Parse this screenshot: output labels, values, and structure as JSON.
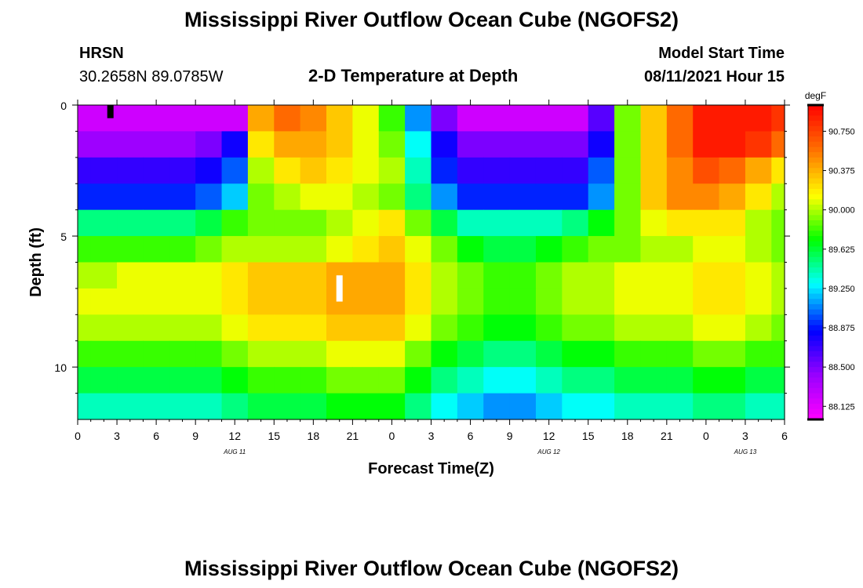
{
  "page": {
    "title_top": "Mississippi River Outflow Ocean Cube (NGOFS2)",
    "title_bottom": "Mississippi River Outflow Ocean Cube (NGOFS2)",
    "station": {
      "name": "HRSN",
      "coords": "30.2658N  89.0785W"
    },
    "plot_title": "2-D Temperature at Depth",
    "model": {
      "label": "Model Start Time",
      "value": "08/11/2021 Hour 15"
    }
  },
  "chart_data": {
    "type": "heatmap",
    "title": "2-D Temperature at Depth",
    "xlabel": "Forecast Time(Z)",
    "ylabel": "Depth (ft)",
    "x_range_hours": [
      0,
      54
    ],
    "x_tick_labels": [
      "0",
      "3",
      "6",
      "9",
      "12",
      "15",
      "18",
      "21",
      "0",
      "3",
      "6",
      "9",
      "12",
      "15",
      "18",
      "21",
      "0",
      "3",
      "6"
    ],
    "date_labels": [
      {
        "hour": 12,
        "text": "AUG 11"
      },
      {
        "hour": 36,
        "text": "AUG 12"
      },
      {
        "hour": 51,
        "text": "AUG 13"
      }
    ],
    "y_range_ft": [
      0,
      12
    ],
    "y_tick_labels": [
      "0",
      "5",
      "10"
    ],
    "colorbar": {
      "unit": "degF",
      "min": 88.0,
      "max": 91.0,
      "tick_values": [
        88.125,
        88.5,
        88.875,
        89.25,
        89.625,
        90.0,
        90.375,
        90.75
      ],
      "tick_labels": [
        "88.125",
        "88.500",
        "88.875",
        "89.250",
        "89.625",
        "90.000",
        "90.375",
        "90.750"
      ]
    },
    "markers": [
      {
        "hour": 2.5,
        "depth_from": 0.0,
        "depth_to": 0.5,
        "color": "#000000"
      },
      {
        "hour": 20,
        "depth_from": 6.5,
        "depth_to": 7.5,
        "color": "#ffffff"
      }
    ],
    "depth_rows_ft": [
      0.5,
      1.5,
      2.5,
      3.5,
      4.5,
      5.5,
      6.5,
      7.5,
      8.5,
      9.5,
      10.5,
      11.5
    ],
    "time_columns_hours": [
      0,
      2,
      4,
      6,
      8,
      10,
      12,
      14,
      16,
      18,
      20,
      22,
      24,
      26,
      28,
      30,
      32,
      34,
      36,
      38,
      40,
      42,
      44,
      46,
      48,
      50,
      52,
      54
    ],
    "temperature_degF": [
      [
        88.2,
        88.2,
        88.2,
        88.2,
        88.2,
        88.2,
        88.2,
        90.4,
        90.6,
        90.5,
        90.3,
        90.1,
        89.8,
        89.1,
        88.5,
        88.2,
        88.2,
        88.2,
        88.2,
        88.2,
        88.6,
        89.9,
        90.3,
        90.6,
        90.9,
        90.9,
        90.9,
        90.8
      ],
      [
        88.4,
        88.4,
        88.4,
        88.4,
        88.4,
        88.5,
        88.8,
        90.2,
        90.4,
        90.4,
        90.3,
        90.1,
        89.9,
        89.3,
        88.8,
        88.5,
        88.5,
        88.5,
        88.5,
        88.5,
        88.8,
        89.9,
        90.3,
        90.6,
        90.9,
        90.9,
        90.8,
        90.6
      ],
      [
        88.7,
        88.7,
        88.7,
        88.7,
        88.7,
        88.8,
        89.0,
        90.0,
        90.2,
        90.3,
        90.2,
        90.1,
        90.0,
        89.4,
        88.9,
        88.7,
        88.7,
        88.7,
        88.7,
        88.7,
        89.0,
        89.9,
        90.3,
        90.5,
        90.7,
        90.6,
        90.4,
        90.2
      ],
      [
        88.9,
        88.9,
        88.9,
        88.9,
        88.9,
        89.0,
        89.2,
        89.9,
        90.0,
        90.1,
        90.1,
        90.0,
        89.9,
        89.5,
        89.1,
        88.9,
        88.9,
        88.9,
        88.9,
        88.9,
        89.1,
        89.9,
        90.3,
        90.5,
        90.5,
        90.4,
        90.2,
        90.0
      ],
      [
        89.5,
        89.5,
        89.5,
        89.5,
        89.5,
        89.6,
        89.8,
        89.9,
        89.9,
        89.9,
        90.0,
        90.1,
        90.2,
        89.9,
        89.6,
        89.4,
        89.4,
        89.4,
        89.4,
        89.5,
        89.7,
        89.9,
        90.1,
        90.2,
        90.2,
        90.2,
        90.0,
        89.9
      ],
      [
        89.8,
        89.8,
        89.8,
        89.8,
        89.8,
        89.9,
        90.0,
        90.0,
        90.0,
        90.0,
        90.1,
        90.2,
        90.3,
        90.1,
        89.9,
        89.7,
        89.6,
        89.6,
        89.7,
        89.8,
        89.9,
        89.9,
        90.0,
        90.0,
        90.1,
        90.1,
        90.0,
        89.9
      ],
      [
        90.0,
        90.0,
        90.1,
        90.1,
        90.1,
        90.1,
        90.2,
        90.3,
        90.3,
        90.3,
        90.4,
        90.4,
        90.4,
        90.2,
        90.0,
        89.9,
        89.8,
        89.8,
        89.9,
        90.0,
        90.0,
        90.1,
        90.1,
        90.1,
        90.2,
        90.2,
        90.1,
        90.0
      ],
      [
        90.1,
        90.1,
        90.1,
        90.1,
        90.1,
        90.1,
        90.2,
        90.3,
        90.3,
        90.3,
        90.4,
        90.4,
        90.4,
        90.2,
        90.0,
        89.9,
        89.8,
        89.8,
        89.9,
        90.0,
        90.0,
        90.1,
        90.1,
        90.1,
        90.2,
        90.2,
        90.1,
        90.0
      ],
      [
        90.0,
        90.0,
        90.0,
        90.0,
        90.0,
        90.0,
        90.1,
        90.2,
        90.2,
        90.2,
        90.3,
        90.3,
        90.3,
        90.1,
        89.9,
        89.8,
        89.7,
        89.7,
        89.8,
        89.9,
        89.9,
        90.0,
        90.0,
        90.0,
        90.1,
        90.1,
        90.0,
        89.9
      ],
      [
        89.8,
        89.8,
        89.8,
        89.8,
        89.8,
        89.8,
        89.9,
        90.0,
        90.0,
        90.0,
        90.1,
        90.1,
        90.1,
        89.9,
        89.7,
        89.6,
        89.5,
        89.5,
        89.6,
        89.7,
        89.7,
        89.8,
        89.8,
        89.8,
        89.9,
        89.9,
        89.8,
        89.8
      ],
      [
        89.6,
        89.6,
        89.6,
        89.6,
        89.6,
        89.6,
        89.7,
        89.8,
        89.8,
        89.8,
        89.9,
        89.9,
        89.9,
        89.7,
        89.5,
        89.4,
        89.3,
        89.3,
        89.4,
        89.5,
        89.5,
        89.6,
        89.6,
        89.6,
        89.7,
        89.7,
        89.6,
        89.6
      ],
      [
        89.4,
        89.4,
        89.4,
        89.4,
        89.4,
        89.4,
        89.5,
        89.6,
        89.6,
        89.6,
        89.7,
        89.7,
        89.7,
        89.5,
        89.3,
        89.2,
        89.1,
        89.1,
        89.2,
        89.3,
        89.3,
        89.4,
        89.4,
        89.4,
        89.5,
        89.5,
        89.4,
        89.4
      ]
    ]
  }
}
